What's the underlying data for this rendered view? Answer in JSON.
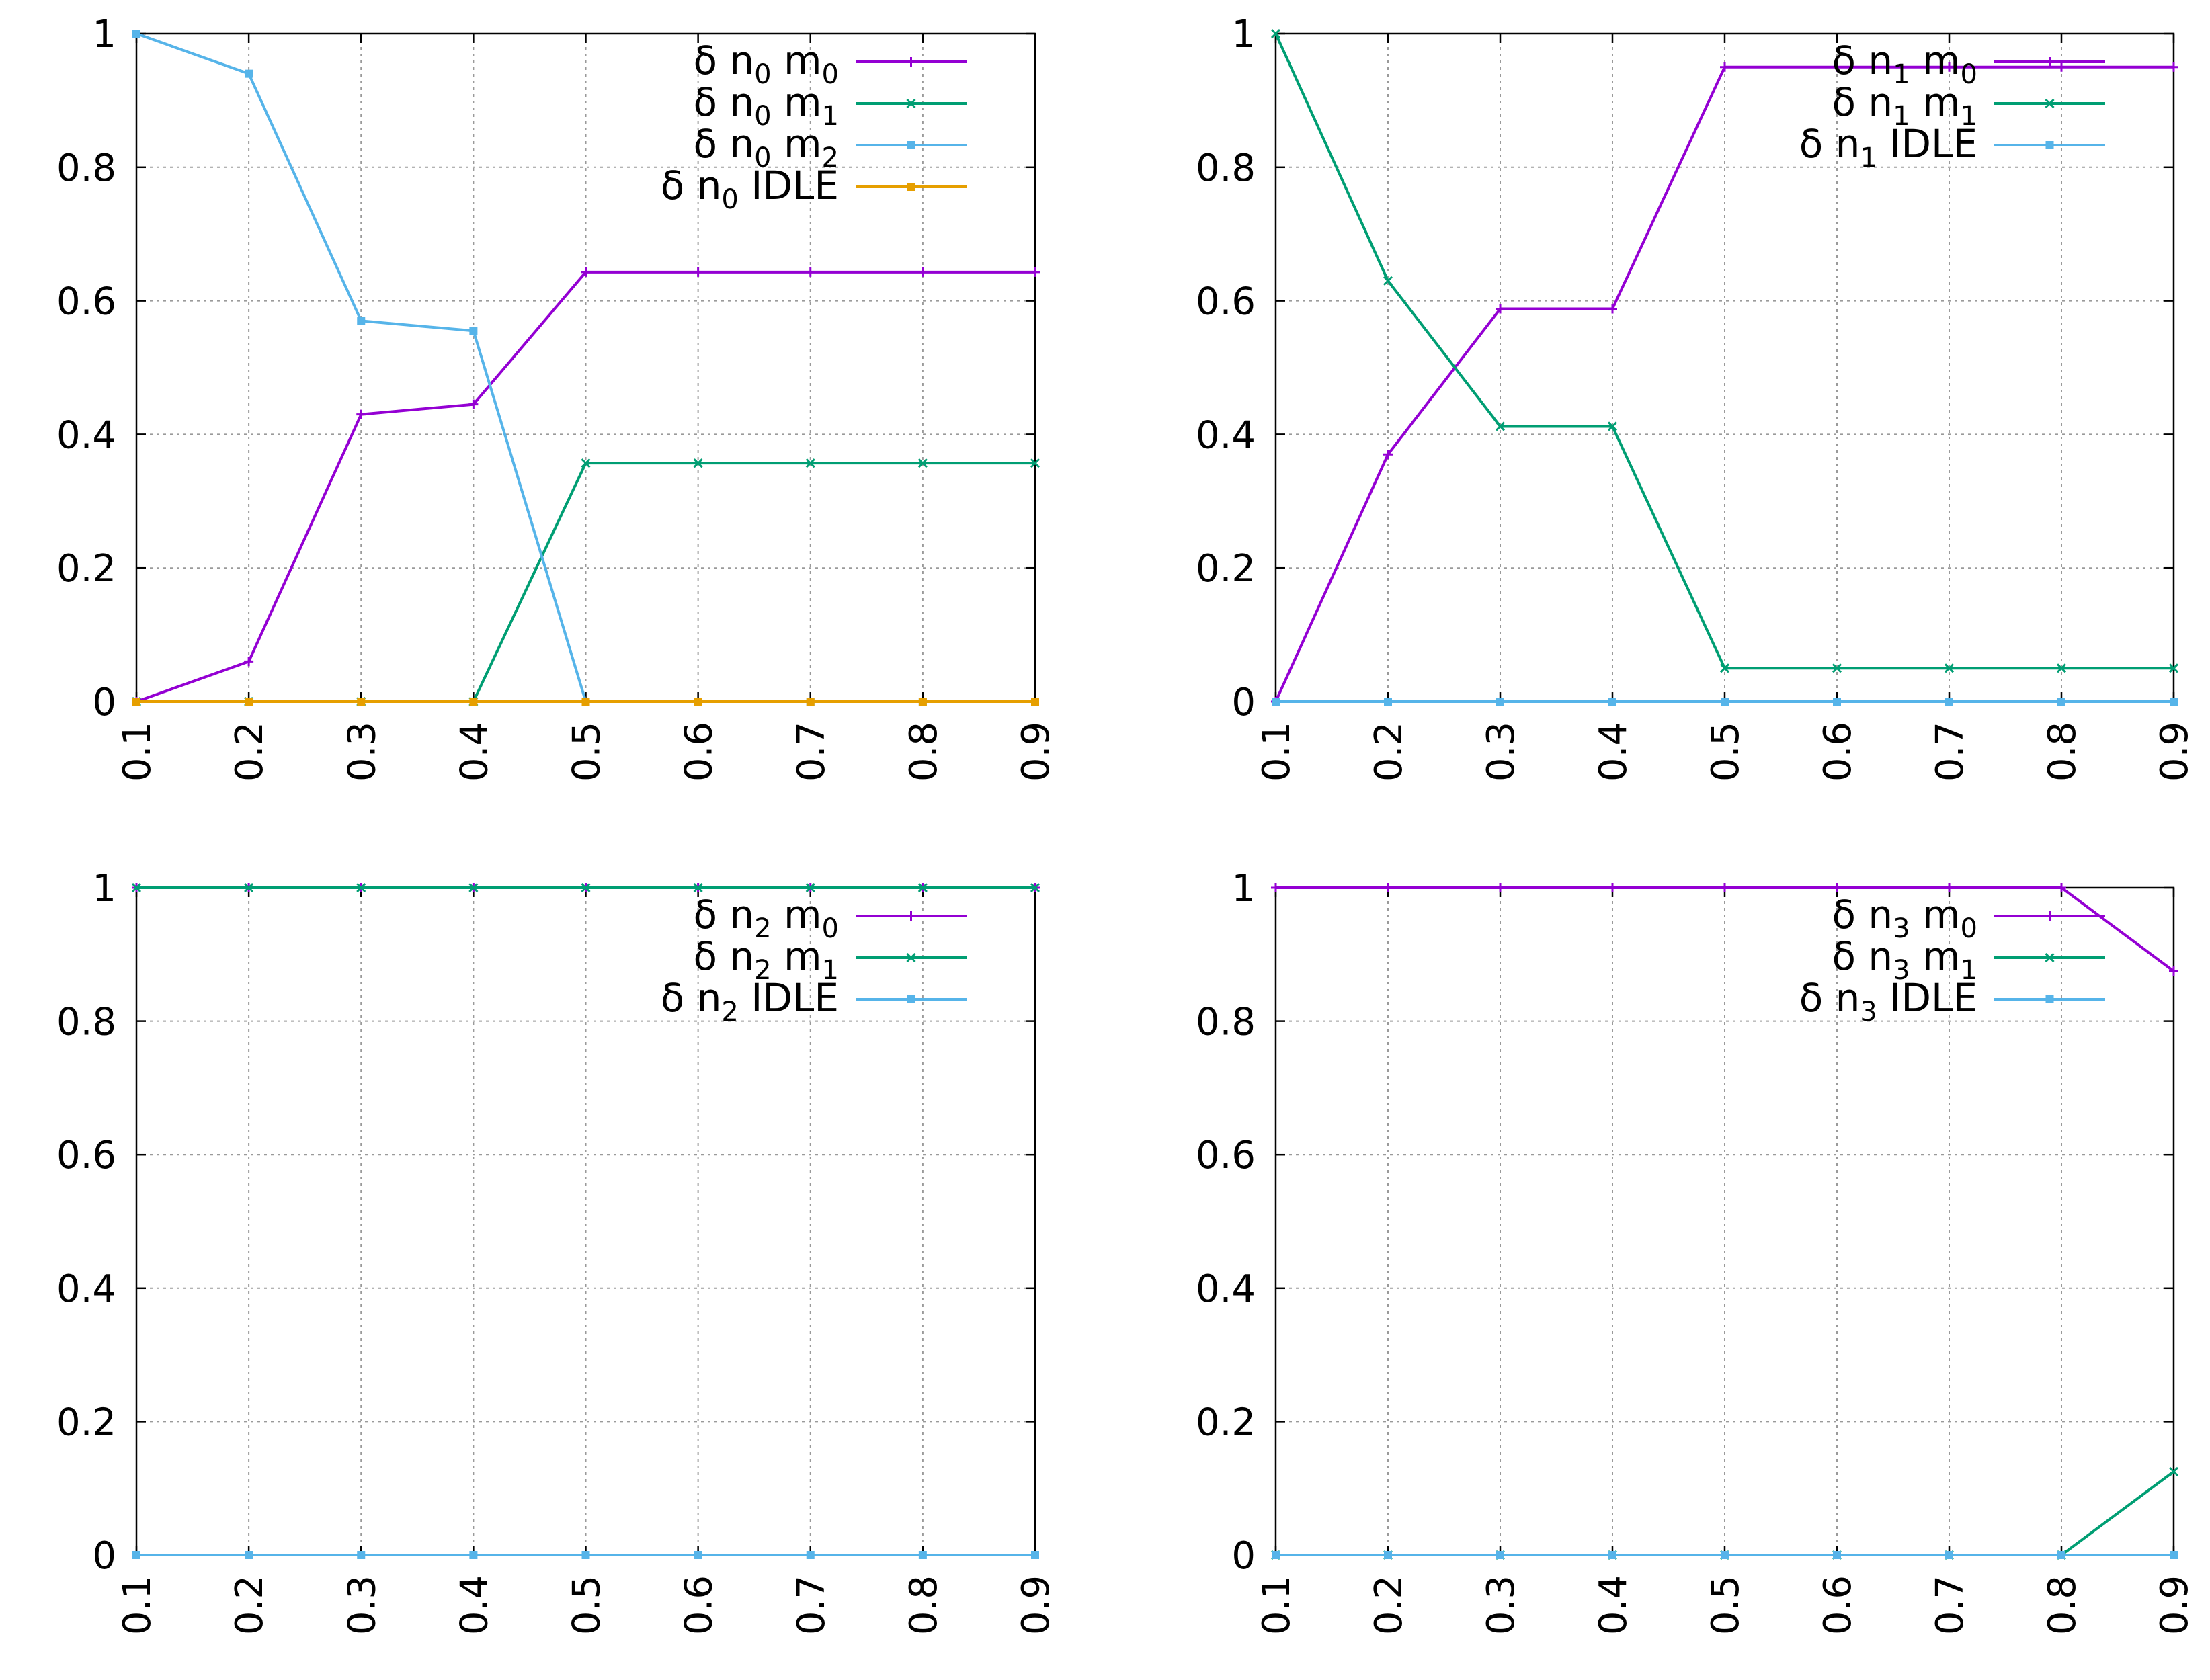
{
  "chart_data": [
    {
      "type": "line",
      "title": "",
      "xlabel": "",
      "ylabel": "",
      "x": [
        0.1,
        0.2,
        0.3,
        0.4,
        0.5,
        0.6,
        0.7,
        0.8,
        0.9
      ],
      "xtick_labels": [
        "0.1",
        "0.2",
        "0.3",
        "0.4",
        "0.5",
        "0.6",
        "0.7",
        "0.8",
        "0.9"
      ],
      "ytick_labels": [
        "0",
        "0.2",
        "0.4",
        "0.6",
        "0.8",
        "1"
      ],
      "ylim": [
        0,
        1
      ],
      "grid": true,
      "legend_position": "top-right",
      "series": [
        {
          "name": "δ n0 m0",
          "label_prefix": "δ n",
          "sub1": "0",
          "label_mid": " m",
          "sub2": "0",
          "color": "#9400d3",
          "marker": "plus",
          "values": [
            0,
            0.06,
            0.43,
            0.445,
            0.643,
            0.643,
            0.643,
            0.643,
            0.643
          ]
        },
        {
          "name": "δ n0 m1",
          "label_prefix": "δ n",
          "sub1": "0",
          "label_mid": " m",
          "sub2": "1",
          "color": "#009e73",
          "marker": "cross",
          "values": [
            0,
            0,
            0,
            0,
            0.357,
            0.357,
            0.357,
            0.357,
            0.357
          ]
        },
        {
          "name": "δ n0 m2",
          "label_prefix": "δ n",
          "sub1": "0",
          "label_mid": " m",
          "sub2": "2",
          "color": "#56b4e9",
          "marker": "square",
          "values": [
            1,
            0.94,
            0.57,
            0.555,
            0,
            0,
            0,
            0,
            0
          ]
        },
        {
          "name": "δ n0 IDLE",
          "label_prefix": "δ n",
          "sub1": "0",
          "label_mid": " IDLE",
          "sub2": "",
          "color": "#e69f00",
          "marker": "square",
          "values": [
            0,
            0,
            0,
            0,
            0,
            0,
            0,
            0,
            0
          ]
        }
      ]
    },
    {
      "type": "line",
      "title": "",
      "xlabel": "",
      "ylabel": "",
      "x": [
        0.1,
        0.2,
        0.3,
        0.4,
        0.5,
        0.6,
        0.7,
        0.8,
        0.9
      ],
      "xtick_labels": [
        "0.1",
        "0.2",
        "0.3",
        "0.4",
        "0.5",
        "0.6",
        "0.7",
        "0.8",
        "0.9"
      ],
      "ytick_labels": [
        "0",
        "0.2",
        "0.4",
        "0.6",
        "0.8",
        "1"
      ],
      "ylim": [
        0,
        1
      ],
      "grid": true,
      "legend_position": "top-right",
      "series": [
        {
          "name": "δ n1 m0",
          "label_prefix": "δ n",
          "sub1": "1",
          "label_mid": " m",
          "sub2": "0",
          "color": "#9400d3",
          "marker": "plus",
          "values": [
            0,
            0.37,
            0.588,
            0.588,
            0.95,
            0.95,
            0.95,
            0.95,
            0.95
          ]
        },
        {
          "name": "δ n1 m1",
          "label_prefix": "δ n",
          "sub1": "1",
          "label_mid": " m",
          "sub2": "1",
          "color": "#009e73",
          "marker": "cross",
          "values": [
            1,
            0.63,
            0.412,
            0.412,
            0.05,
            0.05,
            0.05,
            0.05,
            0.05
          ]
        },
        {
          "name": "δ n1 IDLE",
          "label_prefix": "δ n",
          "sub1": "1",
          "label_mid": " IDLE",
          "sub2": "",
          "color": "#56b4e9",
          "marker": "square",
          "values": [
            0,
            0,
            0,
            0,
            0,
            0,
            0,
            0,
            0
          ]
        }
      ]
    },
    {
      "type": "line",
      "title": "",
      "xlabel": "",
      "ylabel": "",
      "x": [
        0.1,
        0.2,
        0.3,
        0.4,
        0.5,
        0.6,
        0.7,
        0.8,
        0.9
      ],
      "xtick_labels": [
        "0.1",
        "0.2",
        "0.3",
        "0.4",
        "0.5",
        "0.6",
        "0.7",
        "0.8",
        "0.9"
      ],
      "ytick_labels": [
        "0",
        "0.2",
        "0.4",
        "0.6",
        "0.8",
        "1"
      ],
      "ylim": [
        0,
        1
      ],
      "grid": true,
      "legend_position": "top-right",
      "series": [
        {
          "name": "δ n2 m0",
          "label_prefix": "δ n",
          "sub1": "2",
          "label_mid": " m",
          "sub2": "0",
          "color": "#9400d3",
          "marker": "plus",
          "values": [
            1,
            1,
            1,
            1,
            1,
            1,
            1,
            1,
            1
          ]
        },
        {
          "name": "δ n2 m1",
          "label_prefix": "δ n",
          "sub1": "2",
          "label_mid": " m",
          "sub2": "1",
          "color": "#009e73",
          "marker": "cross",
          "values": [
            1,
            1,
            1,
            1,
            1,
            1,
            1,
            1,
            1
          ]
        },
        {
          "name": "δ n2 IDLE",
          "label_prefix": "δ n",
          "sub1": "2",
          "label_mid": " IDLE",
          "sub2": "",
          "color": "#56b4e9",
          "marker": "square",
          "values": [
            0,
            0,
            0,
            0,
            0,
            0,
            0,
            0,
            0
          ]
        }
      ]
    },
    {
      "type": "line",
      "title": "",
      "xlabel": "",
      "ylabel": "",
      "x": [
        0.1,
        0.2,
        0.3,
        0.4,
        0.5,
        0.6,
        0.7,
        0.8,
        0.9
      ],
      "xtick_labels": [
        "0.1",
        "0.2",
        "0.3",
        "0.4",
        "0.5",
        "0.6",
        "0.7",
        "0.8",
        "0.9"
      ],
      "ytick_labels": [
        "0",
        "0.2",
        "0.4",
        "0.6",
        "0.8",
        "1"
      ],
      "ylim": [
        0,
        1
      ],
      "grid": true,
      "legend_position": "top-right",
      "series": [
        {
          "name": "δ n3 m0",
          "label_prefix": "δ n",
          "sub1": "3",
          "label_mid": " m",
          "sub2": "0",
          "color": "#9400d3",
          "marker": "plus",
          "values": [
            1,
            1,
            1,
            1,
            1,
            1,
            1,
            1,
            0.875
          ]
        },
        {
          "name": "δ n3 m1",
          "label_prefix": "δ n",
          "sub1": "3",
          "label_mid": " m",
          "sub2": "1",
          "color": "#009e73",
          "marker": "cross",
          "values": [
            0,
            0,
            0,
            0,
            0,
            0,
            0,
            0,
            0.125
          ]
        },
        {
          "name": "δ n3 IDLE",
          "label_prefix": "δ n",
          "sub1": "3",
          "label_mid": " IDLE",
          "sub2": "",
          "color": "#56b4e9",
          "marker": "square",
          "values": [
            0,
            0,
            0,
            0,
            0,
            0,
            0,
            0,
            0
          ]
        }
      ]
    }
  ]
}
